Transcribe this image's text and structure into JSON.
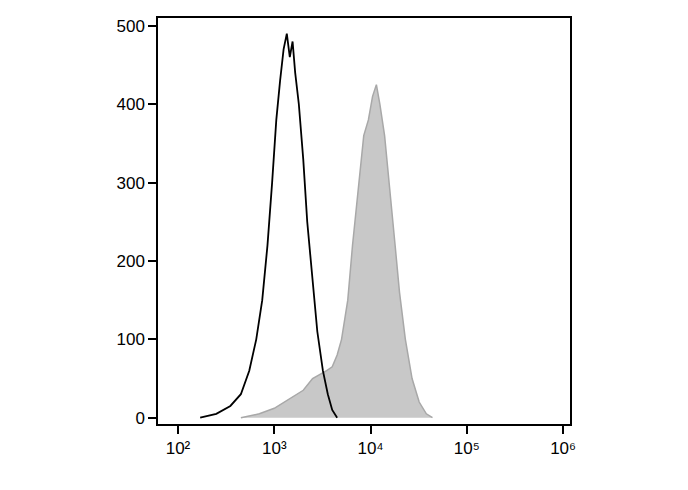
{
  "chart_data": {
    "type": "line",
    "log": "x",
    "grid": false,
    "xlim": [
      62,
      1180000
    ],
    "xticks": [
      {
        "value": 100,
        "label": "10²"
      },
      {
        "value": 1000,
        "label": "10³"
      },
      {
        "value": 10000,
        "label": "10⁴"
      },
      {
        "value": 100000,
        "label": "10⁵"
      },
      {
        "value": 1000000,
        "label": "10⁶"
      }
    ],
    "ylim": [
      -8,
      510
    ],
    "yticks": [
      0,
      100,
      200,
      300,
      400,
      500
    ],
    "series": [
      {
        "type": "area",
        "color": "#c8c8c8",
        "x": [
          450,
          700,
          1000,
          1500,
          2000,
          2500,
          3000,
          3500,
          4000,
          4500,
          5000,
          5800,
          6500,
          7500,
          8500,
          9500,
          10500,
          11500,
          12500,
          14000,
          16000,
          18000,
          20000,
          23000,
          27000,
          32000,
          38000,
          44000
        ],
        "values": [
          0,
          5,
          12,
          25,
          35,
          50,
          55,
          60,
          65,
          80,
          100,
          150,
          220,
          300,
          360,
          380,
          410,
          425,
          400,
          360,
          290,
          220,
          160,
          100,
          50,
          20,
          5,
          0
        ]
      },
      {
        "type": "line",
        "color": "#000000",
        "x": [
          170,
          250,
          350,
          450,
          550,
          650,
          750,
          850,
          950,
          1050,
          1150,
          1250,
          1350,
          1450,
          1550,
          1650,
          1800,
          2000,
          2200,
          2500,
          2800,
          3200,
          3600,
          4000,
          4500
        ],
        "values": [
          0,
          5,
          15,
          30,
          60,
          100,
          150,
          220,
          300,
          380,
          430,
          470,
          490,
          460,
          480,
          440,
          400,
          330,
          250,
          170,
          110,
          60,
          30,
          10,
          0
        ]
      }
    ]
  }
}
